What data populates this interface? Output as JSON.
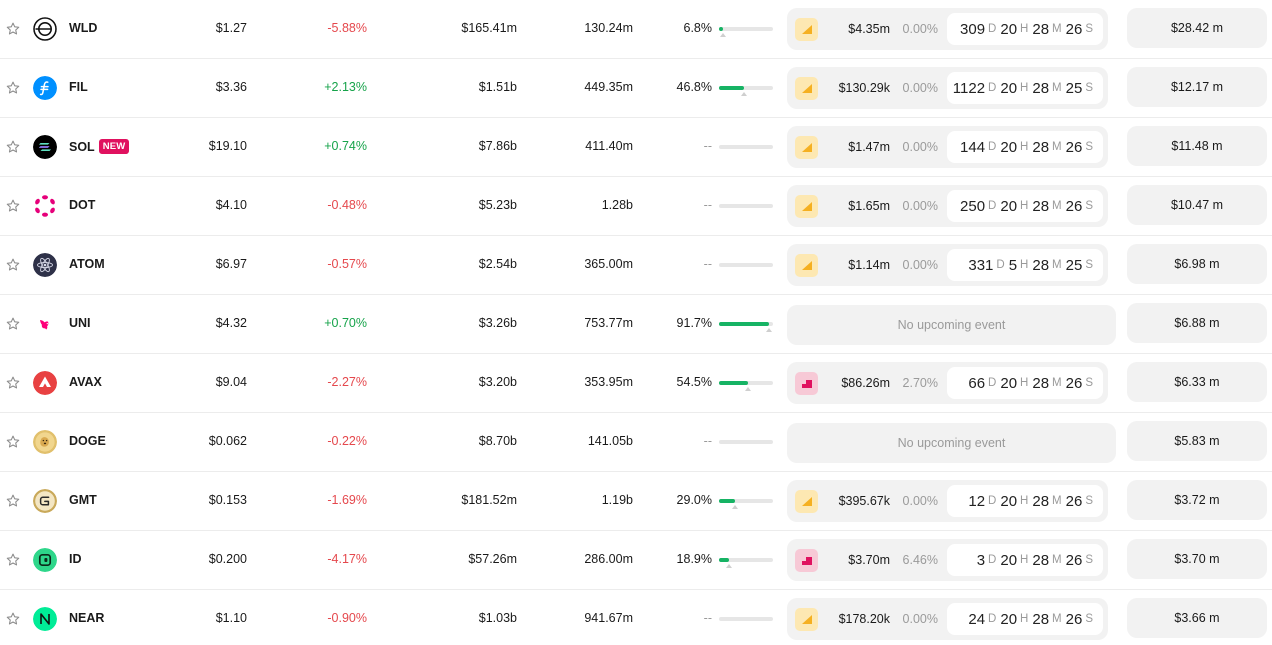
{
  "colors": {
    "positive": "#16a34a",
    "negative": "#e5484d",
    "bar_fill": "#16b364",
    "badge": "#e0115f"
  },
  "rows": [
    {
      "symbol": "WLD",
      "badge": "",
      "logo": "wld-logo-icon",
      "price": "$1.27",
      "change": "-5.88%",
      "direction": "down",
      "market_cap": "$165.41m",
      "volume": "130.24m",
      "circ_pct": "6.8%",
      "circ_fraction": 0.068,
      "event": {
        "type": "unlock",
        "icon": "unlock-icon",
        "amount": "$4.35m",
        "pct": "0.00%",
        "days": "309",
        "hours": "20",
        "minutes": "28",
        "seconds": "26"
      },
      "total": "$28.42 m"
    },
    {
      "symbol": "FIL",
      "badge": "",
      "logo": "fil-logo-icon",
      "price": "$3.36",
      "change": "+2.13%",
      "direction": "up",
      "market_cap": "$1.51b",
      "volume": "449.35m",
      "circ_pct": "46.8%",
      "circ_fraction": 0.468,
      "event": {
        "type": "unlock",
        "icon": "unlock-icon",
        "amount": "$130.29k",
        "pct": "0.00%",
        "days": "1122",
        "hours": "20",
        "minutes": "28",
        "seconds": "25"
      },
      "total": "$12.17 m"
    },
    {
      "symbol": "SOL",
      "badge": "NEW",
      "logo": "sol-logo-icon",
      "price": "$19.10",
      "change": "+0.74%",
      "direction": "up",
      "market_cap": "$7.86b",
      "volume": "411.40m",
      "circ_pct": "--",
      "circ_fraction": null,
      "event": {
        "type": "unlock",
        "icon": "unlock-icon",
        "amount": "$1.47m",
        "pct": "0.00%",
        "days": "144",
        "hours": "20",
        "minutes": "28",
        "seconds": "26"
      },
      "total": "$11.48 m"
    },
    {
      "symbol": "DOT",
      "badge": "",
      "logo": "dot-logo-icon",
      "price": "$4.10",
      "change": "-0.48%",
      "direction": "down",
      "market_cap": "$5.23b",
      "volume": "1.28b",
      "circ_pct": "--",
      "circ_fraction": null,
      "event": {
        "type": "unlock",
        "icon": "unlock-icon",
        "amount": "$1.65m",
        "pct": "0.00%",
        "days": "250",
        "hours": "20",
        "minutes": "28",
        "seconds": "26"
      },
      "total": "$10.47 m"
    },
    {
      "symbol": "ATOM",
      "badge": "",
      "logo": "atom-logo-icon",
      "price": "$6.97",
      "change": "-0.57%",
      "direction": "down",
      "market_cap": "$2.54b",
      "volume": "365.00m",
      "circ_pct": "--",
      "circ_fraction": null,
      "event": {
        "type": "unlock",
        "icon": "unlock-icon",
        "amount": "$1.14m",
        "pct": "0.00%",
        "days": "331",
        "hours": "5",
        "minutes": "28",
        "seconds": "25"
      },
      "total": "$6.98 m"
    },
    {
      "symbol": "UNI",
      "badge": "",
      "logo": "uni-logo-icon",
      "price": "$4.32",
      "change": "+0.70%",
      "direction": "up",
      "market_cap": "$3.26b",
      "volume": "753.77m",
      "circ_pct": "91.7%",
      "circ_fraction": 0.917,
      "event": null,
      "no_event_text": "No upcoming event",
      "total": "$6.88 m"
    },
    {
      "symbol": "AVAX",
      "badge": "",
      "logo": "avax-logo-icon",
      "price": "$9.04",
      "change": "-2.27%",
      "direction": "down",
      "market_cap": "$3.20b",
      "volume": "353.95m",
      "circ_pct": "54.5%",
      "circ_fraction": 0.545,
      "event": {
        "type": "linear",
        "icon": "linear-unlock-icon",
        "amount": "$86.26m",
        "pct": "2.70%",
        "days": "66",
        "hours": "20",
        "minutes": "28",
        "seconds": "26"
      },
      "total": "$6.33 m"
    },
    {
      "symbol": "DOGE",
      "badge": "",
      "logo": "doge-logo-icon",
      "price": "$0.062",
      "change": "-0.22%",
      "direction": "down",
      "market_cap": "$8.70b",
      "volume": "141.05b",
      "circ_pct": "--",
      "circ_fraction": null,
      "event": null,
      "no_event_text": "No upcoming event",
      "total": "$5.83 m"
    },
    {
      "symbol": "GMT",
      "badge": "",
      "logo": "gmt-logo-icon",
      "price": "$0.153",
      "change": "-1.69%",
      "direction": "down",
      "market_cap": "$181.52m",
      "volume": "1.19b",
      "circ_pct": "29.0%",
      "circ_fraction": 0.29,
      "event": {
        "type": "unlock",
        "icon": "unlock-icon",
        "amount": "$395.67k",
        "pct": "0.00%",
        "days": "12",
        "hours": "20",
        "minutes": "28",
        "seconds": "26"
      },
      "total": "$3.72 m"
    },
    {
      "symbol": "ID",
      "badge": "",
      "logo": "id-logo-icon",
      "price": "$0.200",
      "change": "-4.17%",
      "direction": "down",
      "market_cap": "$57.26m",
      "volume": "286.00m",
      "circ_pct": "18.9%",
      "circ_fraction": 0.189,
      "event": {
        "type": "linear",
        "icon": "linear-unlock-icon",
        "amount": "$3.70m",
        "pct": "6.46%",
        "days": "3",
        "hours": "20",
        "minutes": "28",
        "seconds": "26"
      },
      "total": "$3.70 m"
    },
    {
      "symbol": "NEAR",
      "badge": "",
      "logo": "near-logo-icon",
      "price": "$1.10",
      "change": "-0.90%",
      "direction": "down",
      "market_cap": "$1.03b",
      "volume": "941.67m",
      "circ_pct": "--",
      "circ_fraction": null,
      "event": {
        "type": "unlock",
        "icon": "unlock-icon",
        "amount": "$178.20k",
        "pct": "0.00%",
        "days": "24",
        "hours": "20",
        "minutes": "28",
        "seconds": "26"
      },
      "total": "$3.66 m"
    }
  ],
  "units": {
    "days": "D",
    "hours": "H",
    "minutes": "M",
    "seconds": "S"
  }
}
